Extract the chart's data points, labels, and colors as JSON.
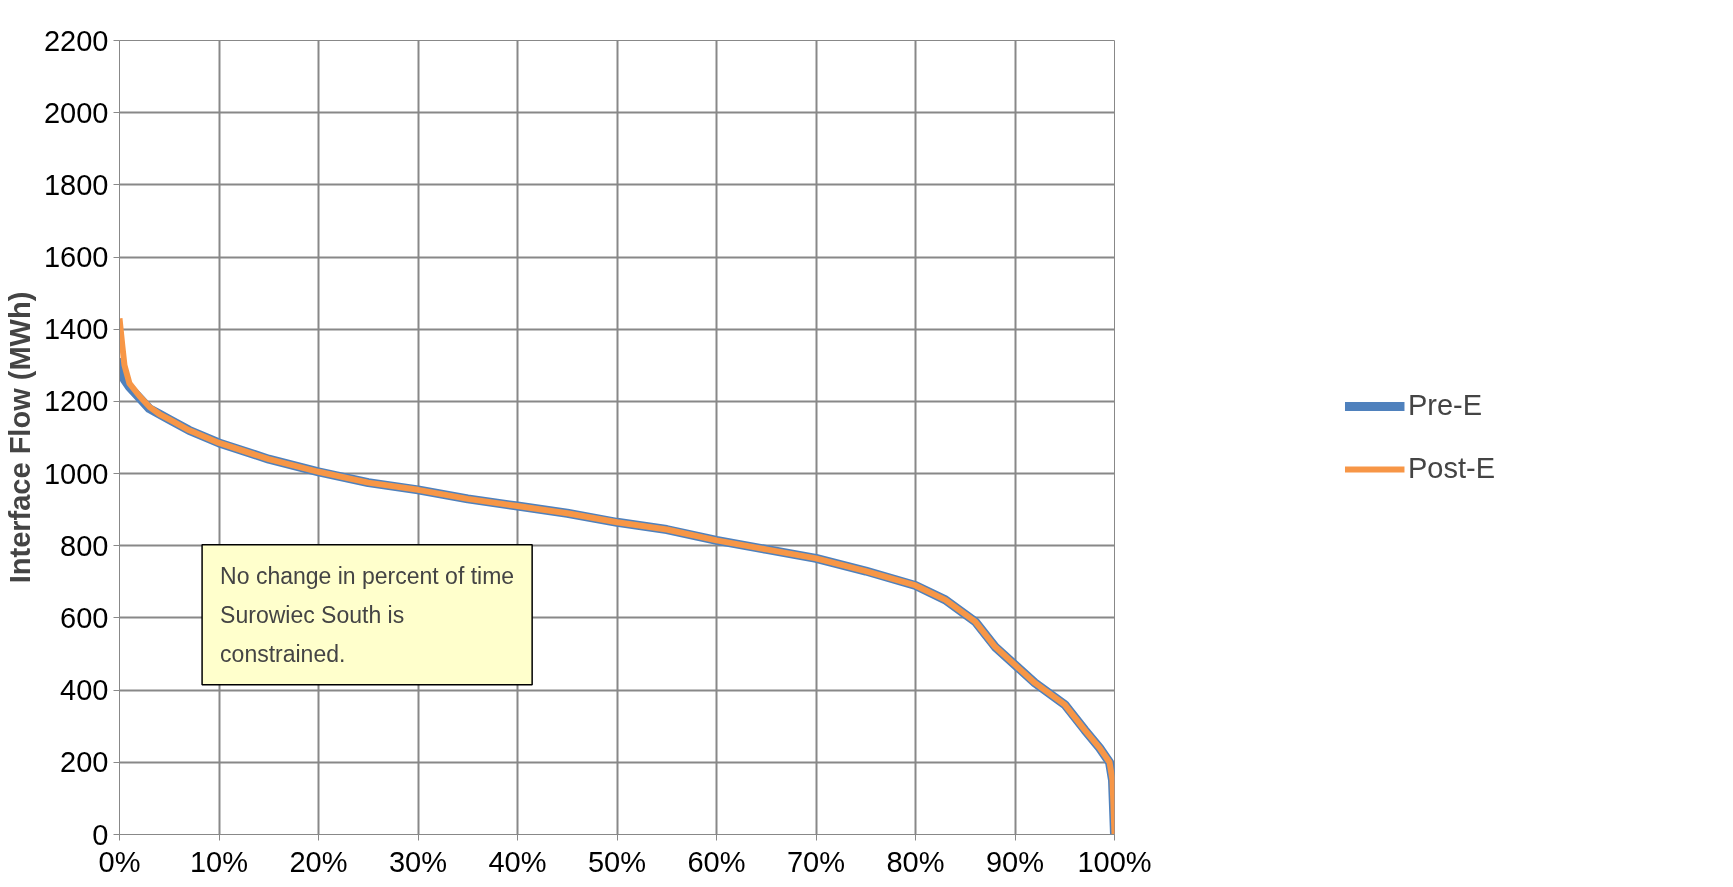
{
  "chart_data": {
    "type": "line",
    "ylabel": "Interface Flow (MWh)",
    "x": [
      0,
      0.3,
      0.5,
      1,
      2,
      3,
      4,
      5,
      7,
      10,
      15,
      20,
      25,
      30,
      35,
      40,
      45,
      50,
      55,
      60,
      65,
      70,
      75,
      80,
      83,
      85,
      86,
      88,
      90,
      92,
      94,
      95,
      97,
      98.5,
      99.5,
      99.8,
      100
    ],
    "series": [
      {
        "name": "Pre-E",
        "color": "#4f81bd",
        "values": [
          1320,
          1280,
          1260,
          1240,
          1210,
          1180,
          1165,
          1150,
          1120,
          1085,
          1040,
          1005,
          975,
          955,
          930,
          910,
          890,
          865,
          845,
          815,
          790,
          765,
          730,
          690,
          650,
          610,
          590,
          520,
          470,
          420,
          380,
          360,
          290,
          240,
          200,
          150,
          0
        ]
      },
      {
        "name": "Post-E",
        "color": "#f79646",
        "values": [
          1430,
          1350,
          1300,
          1250,
          1215,
          1185,
          1165,
          1150,
          1120,
          1085,
          1040,
          1005,
          975,
          955,
          930,
          910,
          890,
          865,
          845,
          815,
          790,
          765,
          730,
          690,
          650,
          610,
          590,
          520,
          470,
          420,
          380,
          360,
          290,
          240,
          200,
          150,
          0
        ]
      }
    ],
    "xlim": [
      0,
      100
    ],
    "ylim": [
      0,
      2200
    ],
    "xticks": [
      {
        "value": 0,
        "label": "0%"
      },
      {
        "value": 10,
        "label": "10%"
      },
      {
        "value": 20,
        "label": "20%"
      },
      {
        "value": 30,
        "label": "30%"
      },
      {
        "value": 40,
        "label": "40%"
      },
      {
        "value": 50,
        "label": "50%"
      },
      {
        "value": 60,
        "label": "60%"
      },
      {
        "value": 70,
        "label": "70%"
      },
      {
        "value": 80,
        "label": "80%"
      },
      {
        "value": 90,
        "label": "90%"
      },
      {
        "value": 100,
        "label": "100%"
      }
    ],
    "yticks": [
      0,
      200,
      400,
      600,
      800,
      1000,
      1200,
      1400,
      1600,
      1800,
      2000,
      2200
    ],
    "annotations": [
      "No change in percent of time\nSurowiec South is\nconstrained."
    ],
    "grid": true,
    "legend": "right"
  }
}
